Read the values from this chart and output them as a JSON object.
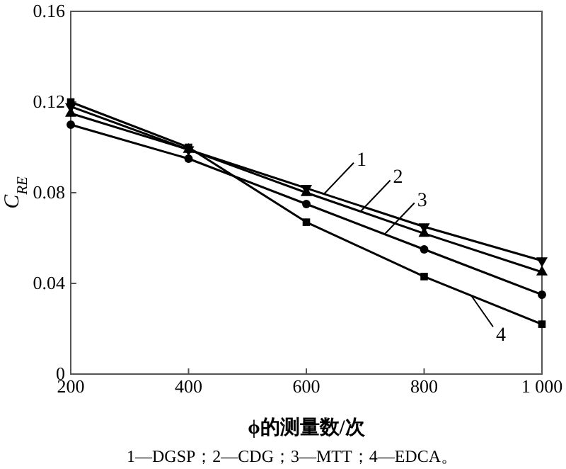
{
  "chart_data": {
    "type": "line",
    "xlabel": "ϕ的测量数/次",
    "ylabel": "C$_{RE}$",
    "x": [
      200,
      400,
      600,
      800,
      1000
    ],
    "xlim": [
      200,
      1000
    ],
    "xticks": [
      200,
      400,
      600,
      800,
      {
        "value": 1000,
        "label": "1 000"
      }
    ],
    "ylim": [
      0,
      0.16
    ],
    "yticks": [
      0,
      0.04,
      0.08,
      0.12,
      0.16
    ],
    "grid": false,
    "line_style": "solid",
    "series": [
      {
        "name": "1",
        "color": "#000000",
        "marker": "triangle-down",
        "values": [
          0.118,
          0.099,
          0.082,
          0.065,
          0.05
        ]
      },
      {
        "name": "2",
        "color": "#000000",
        "marker": "triangle",
        "values": [
          0.115,
          0.099,
          0.08,
          0.062,
          0.045
        ]
      },
      {
        "name": "3",
        "color": "#000000",
        "marker": "circle",
        "values": [
          0.11,
          0.095,
          0.075,
          0.055,
          0.035
        ]
      },
      {
        "name": "4",
        "color": "#000000",
        "marker": "square",
        "values": [
          0.12,
          0.1,
          0.067,
          0.043,
          0.022
        ]
      }
    ],
    "annotations": [
      "1—DGSP；2—CDG；3—MTT；4—EDCA。"
    ]
  }
}
